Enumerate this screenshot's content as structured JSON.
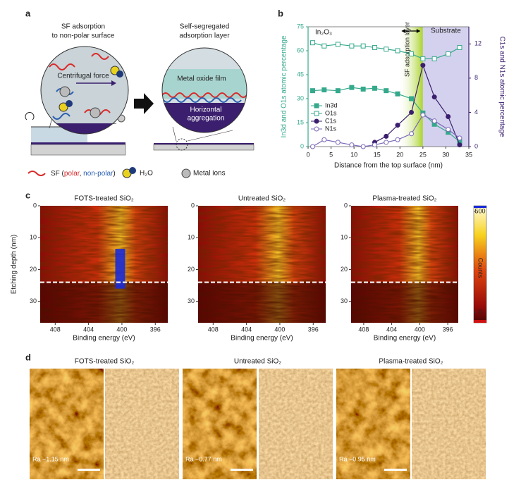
{
  "panel_a": {
    "label": "a",
    "left_title": [
      "SF adsorption",
      "to non-polar surface"
    ],
    "right_title": [
      "Self-segregated",
      "adsorption layer"
    ],
    "centrifugal": "Centrifugal force",
    "film": "Metal oxide film",
    "aggregation": [
      "Horizontal",
      "aggregation"
    ],
    "legend_sf": [
      "SF (",
      "polar",
      ", ",
      "non-polar",
      ")"
    ],
    "legend_water": "H₂O",
    "legend_metal": "Metal ions"
  },
  "chart_data": {
    "type": "line",
    "label": "b",
    "xlabel": "Distance from the top surface (nm)",
    "ylabel": "In3d and O1s atomic percentage",
    "y2label": "C1s and N1s atomic percentage",
    "annotation": "In₂O₃",
    "regions": [
      {
        "label": "SF adsorption layer",
        "from": 19.5,
        "to": 25,
        "color": "#b9dc3c"
      },
      {
        "label": "Substrate",
        "from": 25,
        "to": 35,
        "color": "#c9c6ea"
      }
    ],
    "x": [
      1,
      3.5,
      6.5,
      9.5,
      12,
      14.5,
      17,
      19.5,
      22.5,
      25,
      27.5,
      30.5,
      33
    ],
    "series": [
      {
        "name": "In3d",
        "color": "#35a98c",
        "marker": "square",
        "filled": true,
        "values": [
          35,
          35.5,
          35,
          37,
          36,
          36.5,
          35,
          33,
          30,
          21,
          14,
          9,
          3
        ]
      },
      {
        "name": "O1s",
        "color": "#35a98c",
        "marker": "square",
        "filled": false,
        "values": [
          65,
          63,
          64,
          63,
          63,
          62,
          61,
          60,
          58,
          55,
          55,
          58,
          62
        ]
      },
      {
        "name": "C1s",
        "color": "#3b1f6e",
        "marker": "circle",
        "filled": true,
        "axis": "y2",
        "values": [
          null,
          null,
          null,
          null,
          null,
          0.5,
          1.2,
          2.5,
          4,
          9.5,
          5.8,
          3.5,
          0.2
        ]
      },
      {
        "name": "N1s",
        "color": "#7a68b8",
        "marker": "circle",
        "filled": false,
        "axis": "y2",
        "values": [
          0,
          0.8,
          0.5,
          0.2,
          0,
          0.2,
          0.5,
          0.8,
          1.5,
          3.7,
          3,
          2,
          1
        ]
      }
    ],
    "xlim": [
      0,
      35
    ],
    "xticks": [
      0,
      5,
      10,
      15,
      20,
      25,
      30,
      35
    ],
    "ylim": [
      0,
      75
    ],
    "yticks": [
      0,
      15,
      30,
      45,
      60,
      75
    ],
    "y2lim": [
      0,
      14
    ],
    "y2ticks": [
      0,
      4,
      8,
      12
    ],
    "legend": "lower left"
  },
  "panel_c": {
    "label": "c",
    "titles": [
      "FOTS-treated SiO₂",
      "Untreated SiO₂",
      "Plasma-treated SiO₂"
    ],
    "xlim": [
      409.8,
      394.5
    ],
    "xticks": [
      408,
      404,
      400,
      396
    ],
    "ylim": [
      0,
      36.7
    ],
    "yticks": [
      0,
      10,
      20,
      30
    ],
    "interface": 24,
    "xlabel": "Binding energy (eV)",
    "ylabel": "Etching depth (nm)",
    "clim": [
      -52,
      528
    ],
    "cticks": [
      500,
      0
    ],
    "clabel": "Counts"
  },
  "panel_d": {
    "label": "d",
    "titles": [
      "FOTS-treated SiO₂",
      "Untreated SiO₂",
      "Plasma-treated SiO₂"
    ],
    "ra": [
      "Ra ~1.15 nm",
      "Ra ~0.77 nm",
      "Ra ~0.95 nm"
    ]
  }
}
